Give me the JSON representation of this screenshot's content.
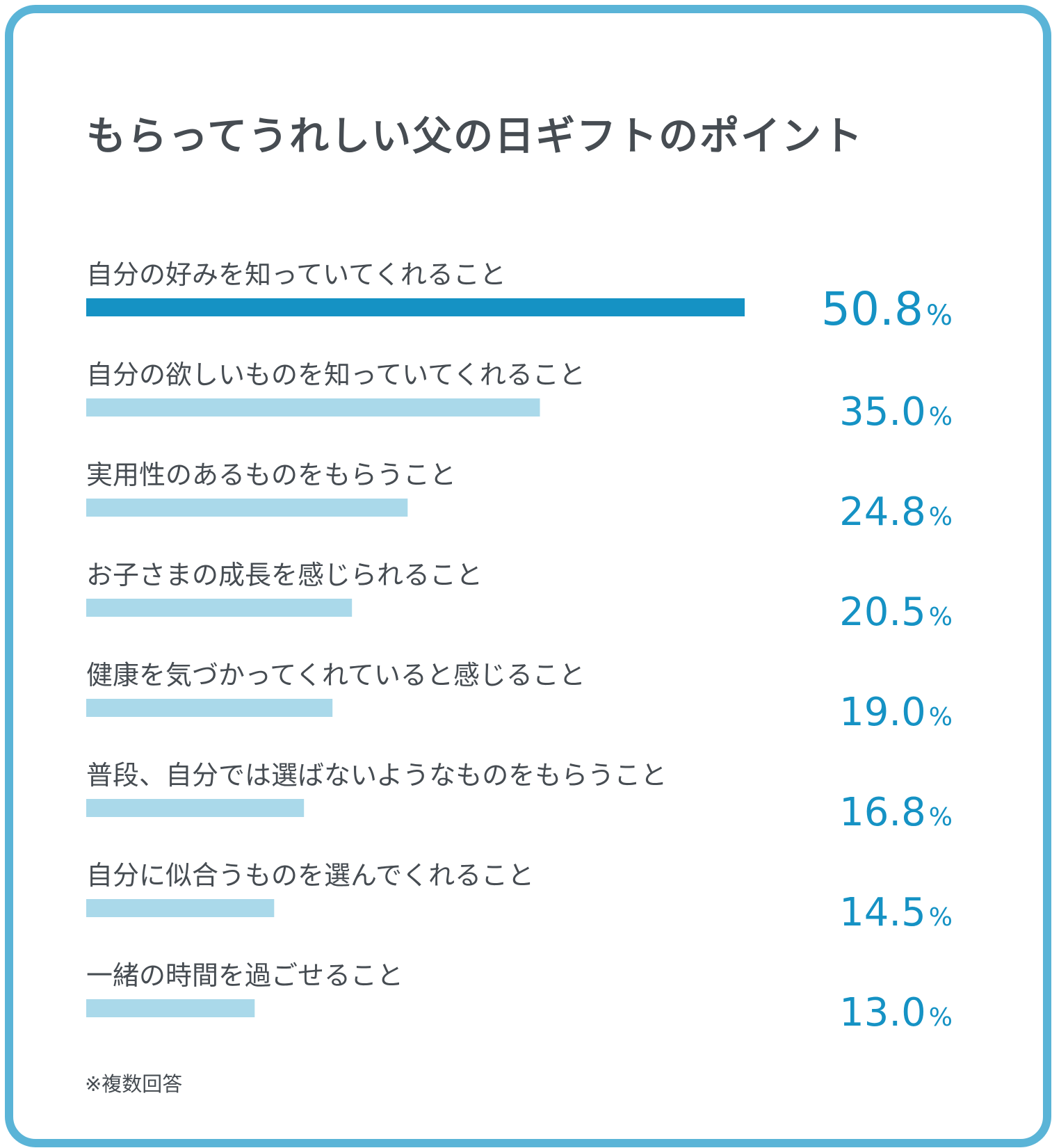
{
  "title": "もらってうれしい父の日ギフトのポイント",
  "note": "※複数回答",
  "colors": {
    "frame": "#5ab4d7",
    "text": "#464c52",
    "value": "#1592c4",
    "bar_highlight": "#1592c4",
    "bar_default": "#aad9ea"
  },
  "chart_data": {
    "type": "bar",
    "orientation": "horizontal",
    "value_suffix": "%",
    "grid": false,
    "categories": [
      "自分の好みを知っていてくれること",
      "自分の欲しいものを知っていてくれること",
      "実用性のあるものをもらうこと",
      "お子さまの成長を感じられること",
      "健康を気づかってくれていると感じること",
      "普段、自分では選ばないようなものをもらうこと",
      "自分に似合うものを選んでくれること",
      "一緒の時間を過ごせること"
    ],
    "values": [
      50.8,
      35.0,
      24.8,
      20.5,
      19.0,
      16.8,
      14.5,
      13.0
    ],
    "labels": [
      "50.8",
      "35.0",
      "24.8",
      "20.5",
      "19.0",
      "16.8",
      "14.5",
      "13.0"
    ],
    "highlight_index": 0
  }
}
